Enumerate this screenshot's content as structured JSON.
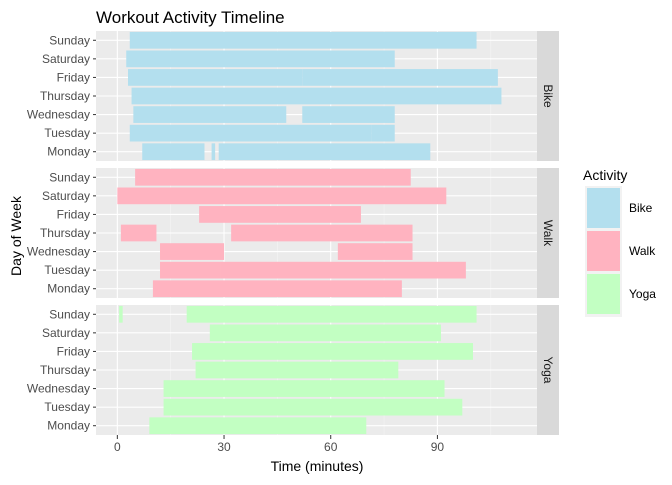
{
  "chart_data": {
    "type": "bar",
    "subtype": "faceted-horizontal-segments",
    "title": "Workout Activity Timeline",
    "xlabel": "Time (minutes)",
    "ylabel": "Day of Week",
    "xlim": [
      -6,
      118
    ],
    "x_ticks": [
      0,
      30,
      60,
      90
    ],
    "grid": true,
    "legend": {
      "title": "Activity",
      "position": "right"
    },
    "days": [
      "Monday",
      "Tuesday",
      "Wednesday",
      "Thursday",
      "Friday",
      "Saturday",
      "Sunday"
    ],
    "facets": [
      {
        "name": "Bike",
        "color": "#b3dfee",
        "segments": [
          {
            "day": "Monday",
            "start": 7,
            "end": 24.5
          },
          {
            "day": "Monday",
            "start": 26.5,
            "end": 27.5
          },
          {
            "day": "Monday",
            "start": 28.5,
            "end": 88
          },
          {
            "day": "Tuesday",
            "start": 3.5,
            "end": 71.5
          },
          {
            "day": "Tuesday",
            "start": 71.5,
            "end": 78
          },
          {
            "day": "Wednesday",
            "start": 4.5,
            "end": 47.5
          },
          {
            "day": "Wednesday",
            "start": 52,
            "end": 78
          },
          {
            "day": "Thursday",
            "start": 4,
            "end": 108
          },
          {
            "day": "Friday",
            "start": 3,
            "end": 52
          },
          {
            "day": "Friday",
            "start": 52,
            "end": 107
          },
          {
            "day": "Saturday",
            "start": 2.5,
            "end": 78
          },
          {
            "day": "Sunday",
            "start": 3.5,
            "end": 101
          }
        ]
      },
      {
        "name": "Walk",
        "color": "#ffb3c0",
        "segments": [
          {
            "day": "Monday",
            "start": 10,
            "end": 80
          },
          {
            "day": "Tuesday",
            "start": 12,
            "end": 29
          },
          {
            "day": "Tuesday",
            "start": 29,
            "end": 98
          },
          {
            "day": "Wednesday",
            "start": 12,
            "end": 30
          },
          {
            "day": "Wednesday",
            "start": 62,
            "end": 83
          },
          {
            "day": "Thursday",
            "start": 1,
            "end": 11
          },
          {
            "day": "Thursday",
            "start": 32,
            "end": 83
          },
          {
            "day": "Friday",
            "start": 23,
            "end": 68.5
          },
          {
            "day": "Saturday",
            "start": 0,
            "end": 92.5
          },
          {
            "day": "Sunday",
            "start": 5,
            "end": 82.5
          }
        ]
      },
      {
        "name": "Yoga",
        "color": "#c2ffc2",
        "segments": [
          {
            "day": "Monday",
            "start": 9,
            "end": 70
          },
          {
            "day": "Tuesday",
            "start": 13,
            "end": 97
          },
          {
            "day": "Wednesday",
            "start": 13,
            "end": 92
          },
          {
            "day": "Thursday",
            "start": 22,
            "end": 79
          },
          {
            "day": "Friday",
            "start": 21,
            "end": 100
          },
          {
            "day": "Saturday",
            "start": 26,
            "end": 91
          },
          {
            "day": "Sunday",
            "start": 0.5,
            "end": 1.5
          },
          {
            "day": "Sunday",
            "start": 19.5,
            "end": 101
          }
        ]
      }
    ]
  }
}
